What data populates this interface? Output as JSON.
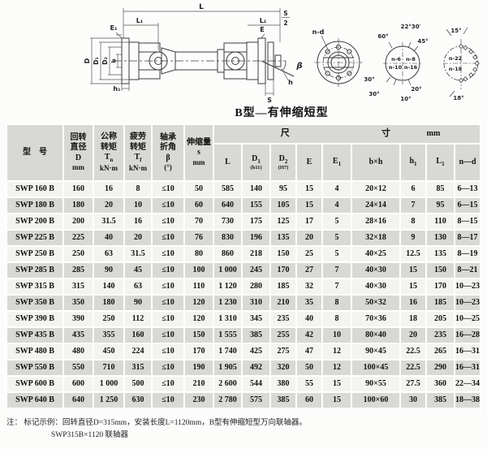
{
  "diagram": {
    "caption": "B型—有伸缩短型",
    "labels": {
      "L": "L",
      "L1_left": "L₁",
      "L1_right": "L₁",
      "E1": "E₁",
      "E": "E",
      "S2_num": "S",
      "S2_den": "2",
      "D": "D",
      "D1": "D₁",
      "D2": "D₂",
      "b": "b",
      "h1": "h₁",
      "beta": "β",
      "h": "h",
      "S": "S",
      "nd": "n-d"
    },
    "bolt_circle_1": {
      "quadrants": [
        "n-6",
        "n-8",
        "n-10",
        "n-16"
      ],
      "angles": [
        "60°",
        "22°30′",
        "45°",
        "30°",
        "30°",
        "10°",
        "20°"
      ]
    },
    "bolt_circle_2": {
      "labels": [
        "n-22",
        "n-18"
      ],
      "angles": [
        "15°",
        "18°"
      ]
    }
  },
  "table": {
    "header": {
      "model": "型　号",
      "d": {
        "l1": "回转",
        "l2": "直径",
        "sym": "D",
        "unit": "mm"
      },
      "tn": {
        "l1": "公称",
        "l2": "转矩",
        "sym": "T",
        "sub": "n",
        "unit": "kN·m"
      },
      "tf": {
        "l1": "疲劳",
        "l2": "转矩",
        "sym": "T",
        "sub": "f",
        "unit": "kN·m"
      },
      "beta": {
        "l1": "轴承",
        "l2": "折角",
        "sym": "β",
        "unit": "(°)"
      },
      "s": {
        "l1": "伸缩量",
        "sym": "s",
        "unit": "mm"
      },
      "dim": {
        "c1": "尺",
        "c2": "寸",
        "c3": "mm"
      },
      "sub": {
        "L": "L",
        "d1_sym": "D",
        "d1_sub": "1",
        "d1_tol": "(h11)",
        "d2_sym": "D",
        "d2_sub": "2",
        "d2_tol": "(H7)",
        "e": "E",
        "e1_sym": "E",
        "e1_sub": "1",
        "bxh": "b×h",
        "h1_sym": "h",
        "h1_sub": "1",
        "l1_sym": "L",
        "l1_sub": "1",
        "nd": "n—d"
      }
    },
    "col_names": [
      "model",
      "d",
      "tn",
      "tf",
      "beta",
      "s",
      "l",
      "d1",
      "d2",
      "e",
      "e1",
      "bxh",
      "h1",
      "l1",
      "nd"
    ],
    "rows": [
      [
        "SWP 160 B",
        "160",
        "16",
        "8",
        "≤10",
        "50",
        "585",
        "140",
        "95",
        "15",
        "4",
        "20×12",
        "6",
        "85",
        "6—13"
      ],
      [
        "SWP 180 B",
        "180",
        "20",
        "10",
        "≤10",
        "60",
        "640",
        "155",
        "105",
        "15",
        "4",
        "24×14",
        "7",
        "95",
        "6—15"
      ],
      [
        "SWP 200 B",
        "200",
        "31.5",
        "16",
        "≤10",
        "70",
        "730",
        "175",
        "125",
        "17",
        "5",
        "28×16",
        "8",
        "110",
        "8—15"
      ],
      [
        "SWP 225 B",
        "225",
        "40",
        "20",
        "≤10",
        "76",
        "830",
        "196",
        "135",
        "20",
        "5",
        "32×18",
        "9",
        "130",
        "8—17"
      ],
      [
        "SWP 250 B",
        "250",
        "63",
        "31.5",
        "≤10",
        "80",
        "860",
        "218",
        "150",
        "25",
        "5",
        "40×25",
        "12.5",
        "135",
        "8—19"
      ],
      [
        "SWP 285 B",
        "285",
        "90",
        "45",
        "≤10",
        "100",
        "1 000",
        "245",
        "170",
        "27",
        "7",
        "40×30",
        "15",
        "150",
        "8—21"
      ],
      [
        "SWP 315 B",
        "315",
        "140",
        "63",
        "≤10",
        "110",
        "1 120",
        "280",
        "185",
        "32",
        "7",
        "40×30",
        "15",
        "170",
        "10—23"
      ],
      [
        "SWP 350 B",
        "350",
        "180",
        "90",
        "≤10",
        "120",
        "1 230",
        "310",
        "210",
        "35",
        "8",
        "50×32",
        "16",
        "185",
        "10—23"
      ],
      [
        "SWP 390 B",
        "390",
        "250",
        "112",
        "≤10",
        "120",
        "1 310",
        "345",
        "235",
        "40",
        "8",
        "70×36",
        "18",
        "205",
        "10—25"
      ],
      [
        "SWP 435 B",
        "435",
        "355",
        "160",
        "≤10",
        "150",
        "1 555",
        "385",
        "255",
        "42",
        "10",
        "80×40",
        "20",
        "235",
        "16—28"
      ],
      [
        "SWP 480 B",
        "480",
        "450",
        "224",
        "≤10",
        "170",
        "1 740",
        "425",
        "275",
        "47",
        "12",
        "90×45",
        "22.5",
        "265",
        "16—31"
      ],
      [
        "SWP 550 B",
        "550",
        "710",
        "315",
        "≤10",
        "190",
        "1 905",
        "492",
        "320",
        "50",
        "12",
        "100×45",
        "22.5",
        "290",
        "16—31"
      ],
      [
        "SWP 600 B",
        "600",
        "1 000",
        "500",
        "≤10",
        "210",
        "2 600",
        "544",
        "380",
        "55",
        "15",
        "90×55",
        "27.5",
        "360",
        "22—34"
      ],
      [
        "SWP 640 B",
        "640",
        "1 250",
        "630",
        "≤10",
        "230",
        "2 780",
        "575",
        "385",
        "60",
        "15",
        "100×60",
        "30",
        "385",
        "18—38"
      ]
    ]
  },
  "notes": {
    "line1": "注：  标记示例：回转直径D=315mm，安装长度L=1120mm，B型有伸缩短型万向联轴器。",
    "line2": "SWP315B×1120 联轴器"
  }
}
